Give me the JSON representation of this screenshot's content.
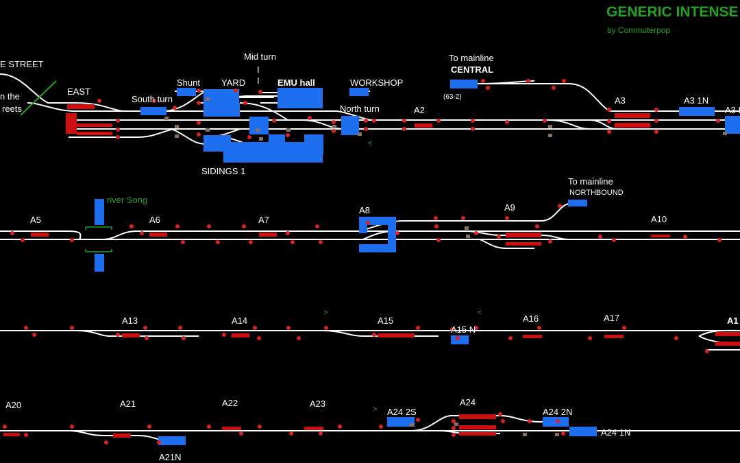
{
  "header": {
    "title": "GENERIC INTENSE",
    "byline": "by Commuterpop"
  },
  "colors": {
    "background": "#000000",
    "track": "#ffffff",
    "occupied": "#cc1010",
    "platform": "#1e6ef0",
    "signal": "#e02020",
    "point": "#8a7060",
    "label_green": "#1fa31f"
  },
  "labels": {
    "street": "E STREET",
    "streets_a": "n the",
    "streets_b": "reets",
    "east": "EAST",
    "south_turn": "South turn",
    "shunt": "Shunt",
    "yard": "YARD",
    "mid_turn": "Mid turn",
    "mid_turn_mark": "I",
    "emu_hall": "EMU hall",
    "workshop": "WORKSHOP",
    "north_turn": "North turn",
    "to_mainline_1": "To mainline",
    "central": "CENTRAL",
    "code_63_2": "(63-2)",
    "a2": "A2",
    "a3": "A3",
    "a3_1n": "A3 1N",
    "a3_cut": "A3 I",
    "sidings_1": "SIDINGS 1",
    "arrow_left_1": "<",
    "river_song": "river Song",
    "a5": "A5",
    "a6": "A6",
    "a7": "A7",
    "a8": "A8",
    "a9": "A9",
    "to_mainline_2": "To mainline",
    "northbound": "NORTHBOUND",
    "a10": "A10",
    "arrow_right_1": ">",
    "arrow_left_2": "<",
    "a13": "A13",
    "a14": "A14",
    "a15": "A15",
    "a15_n": "A15 N",
    "a16": "A16",
    "a17": "A17",
    "a1_cut": "A1",
    "a20": "A20",
    "a21": "A21",
    "a21n": "A21N",
    "a22": "A22",
    "a23": "A23",
    "arrow_right_2": ">",
    "a24_2s": "A24 2S",
    "a24": "A24",
    "a24_2n": "A24 2N",
    "a24_1n": "A24 1N"
  }
}
